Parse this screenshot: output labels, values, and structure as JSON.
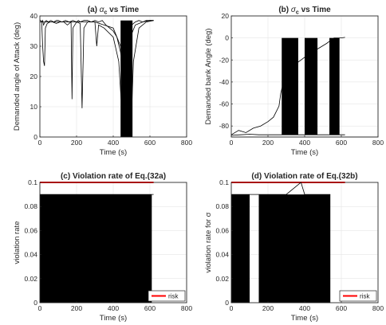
{
  "chart_data": [
    {
      "type": "line",
      "title": "(a) αc vs Time",
      "title_parts": {
        "prefix": "(a) ",
        "symbol": "α",
        "subscript": "c",
        "suffix": " vs Time"
      },
      "xlabel": "Time (s)",
      "ylabel": "Demanded angle of Attack (deg)",
      "xlim": [
        0,
        800
      ],
      "ylim": [
        0,
        40
      ],
      "xticks": [
        0,
        200,
        400,
        600,
        800
      ],
      "yticks": [
        0,
        10,
        20,
        30,
        40
      ],
      "grid": true,
      "series": [
        {
          "x": [
            0,
            5,
            10,
            15,
            20,
            28,
            35,
            45,
            60,
            75,
            90,
            100,
            120,
            140,
            160,
            180,
            200,
            210,
            220,
            240,
            260,
            280,
            300,
            320,
            340,
            360,
            380,
            400,
            420,
            440,
            460,
            480,
            500,
            520,
            540,
            560,
            580,
            600,
            620
          ],
          "values": [
            38.5,
            38.5,
            38,
            38.5,
            37,
            38,
            38.5,
            38,
            38.5,
            38,
            38.5,
            38.5,
            38,
            38.5,
            38,
            38.5,
            38,
            38.5,
            38,
            38.5,
            38.5,
            38,
            38.5,
            38,
            38.5,
            37,
            36,
            35,
            33,
            28,
            20,
            35,
            37,
            38,
            38.5,
            38,
            38.5,
            38.5,
            38.5
          ]
        },
        {
          "x": [
            0,
            10,
            15,
            20,
            25,
            30,
            40,
            55,
            70,
            90,
            110,
            130,
            150,
            170,
            175,
            180,
            200,
            220,
            230,
            240,
            260,
            300,
            350,
            400,
            440,
            450,
            460,
            470,
            480,
            490,
            500,
            520,
            560,
            600,
            620
          ],
          "values": [
            38,
            38,
            30,
            25,
            23.5,
            36,
            37.5,
            38,
            38,
            37.5,
            38,
            38,
            37,
            38,
            12.5,
            36,
            38,
            37.5,
            9.5,
            36,
            38,
            38,
            37,
            36,
            30,
            25,
            0,
            15,
            0,
            30,
            34,
            37,
            38,
            38.5,
            38.5
          ]
        },
        {
          "x": [
            0,
            50,
            100,
            150,
            200,
            250,
            300,
            310,
            320,
            350,
            400,
            430,
            445,
            455,
            465,
            475,
            485,
            495,
            510,
            540,
            580,
            620
          ],
          "values": [
            38,
            38,
            38,
            38,
            38,
            38,
            38,
            30,
            37,
            36,
            33,
            25,
            10,
            0,
            5,
            0,
            12,
            0,
            25,
            36,
            38,
            38.5
          ]
        }
      ],
      "dense_region": {
        "x": [
          440,
          505
        ],
        "y": [
          0,
          38.5
        ]
      }
    },
    {
      "type": "line",
      "title": "(b) σc vs Time",
      "title_parts": {
        "prefix": "(b) ",
        "symbol": "σ",
        "subscript": "c",
        "suffix": " vs Time"
      },
      "xlabel": "Time (s)",
      "ylabel": "Demanded bank Angle (deg)",
      "xlim": [
        0,
        800
      ],
      "ylim": [
        -90,
        20
      ],
      "xticks": [
        0,
        200,
        400,
        600,
        800
      ],
      "yticks": [
        -80,
        -60,
        -40,
        -20,
        0,
        20
      ],
      "grid": true,
      "series": [
        {
          "x": [
            0,
            50,
            100,
            150,
            200,
            250,
            290,
            340,
            380,
            420,
            470,
            520,
            560,
            600,
            620
          ],
          "values": [
            -88.5,
            -88,
            -87.5,
            -88,
            -88,
            -88,
            -88,
            -88,
            -88,
            -88,
            -88,
            -88,
            -88,
            -88,
            -88
          ]
        },
        {
          "x": [
            0,
            40,
            80,
            120,
            160,
            200,
            230,
            260,
            270,
            300,
            340,
            380,
            420,
            470,
            520,
            560,
            600,
            620
          ],
          "values": [
            -88,
            -84,
            -86,
            -82,
            -80,
            -76,
            -72,
            -62,
            -50,
            -30,
            -25,
            -20,
            -15,
            -10,
            -5,
            0,
            0,
            0.5
          ]
        }
      ],
      "dense_region": [
        {
          "x": [
            275,
            365
          ],
          "y": [
            -88,
            0
          ]
        },
        {
          "x": [
            400,
            470
          ],
          "y": [
            -88,
            0
          ]
        },
        {
          "x": [
            535,
            590
          ],
          "y": [
            -88,
            0
          ]
        }
      ]
    },
    {
      "type": "line",
      "title": "(c) Violation rate of Eq.(32a)",
      "xlabel": "Time (s)",
      "ylabel": "violation rate",
      "xlim": [
        0,
        800
      ],
      "ylim": [
        0,
        0.1
      ],
      "xticks": [
        0,
        200,
        400,
        600,
        800
      ],
      "yticks": [
        0,
        0.02,
        0.04,
        0.06,
        0.08,
        0.1
      ],
      "grid": true,
      "legend": {
        "position": "bottom-right",
        "entries": [
          "risk"
        ]
      },
      "series": [
        {
          "name": "risk",
          "color": "#ff0000",
          "x": [
            0,
            620
          ],
          "values": [
            0.1,
            0.1
          ]
        },
        {
          "x": [
            0,
            100,
            200,
            300,
            400,
            500,
            600,
            620
          ],
          "values": [
            0.09,
            0.09,
            0.09,
            0.09,
            0.09,
            0.09,
            0.09,
            0.09
          ]
        }
      ],
      "dense_region": {
        "x": [
          0,
          610
        ],
        "y": [
          0,
          0.09
        ]
      }
    },
    {
      "type": "line",
      "title": "(d) Violation rate of Eq.(32b)",
      "xlabel": "Time (s)",
      "ylabel": "violation rate for σ",
      "xlim": [
        0,
        800
      ],
      "ylim": [
        0,
        0.1
      ],
      "xticks": [
        0,
        200,
        400,
        600,
        800
      ],
      "yticks": [
        0,
        0.02,
        0.04,
        0.06,
        0.08,
        0.1
      ],
      "grid": true,
      "legend": {
        "position": "bottom-right",
        "entries": [
          "risk"
        ]
      },
      "series": [
        {
          "name": "risk",
          "color": "#ff0000",
          "x": [
            0,
            620
          ],
          "values": [
            0.1,
            0.1
          ]
        },
        {
          "x": [
            0,
            100,
            200,
            300,
            380,
            400,
            460,
            500,
            540
          ],
          "values": [
            0.09,
            0.09,
            0.09,
            0.09,
            0.1,
            0.09,
            0.09,
            0.09,
            0.09
          ]
        }
      ],
      "dense_region": [
        {
          "x": [
            0,
            100
          ],
          "y": [
            0,
            0.09
          ]
        },
        {
          "x": [
            150,
            540
          ],
          "y": [
            0,
            0.09
          ]
        }
      ]
    }
  ]
}
